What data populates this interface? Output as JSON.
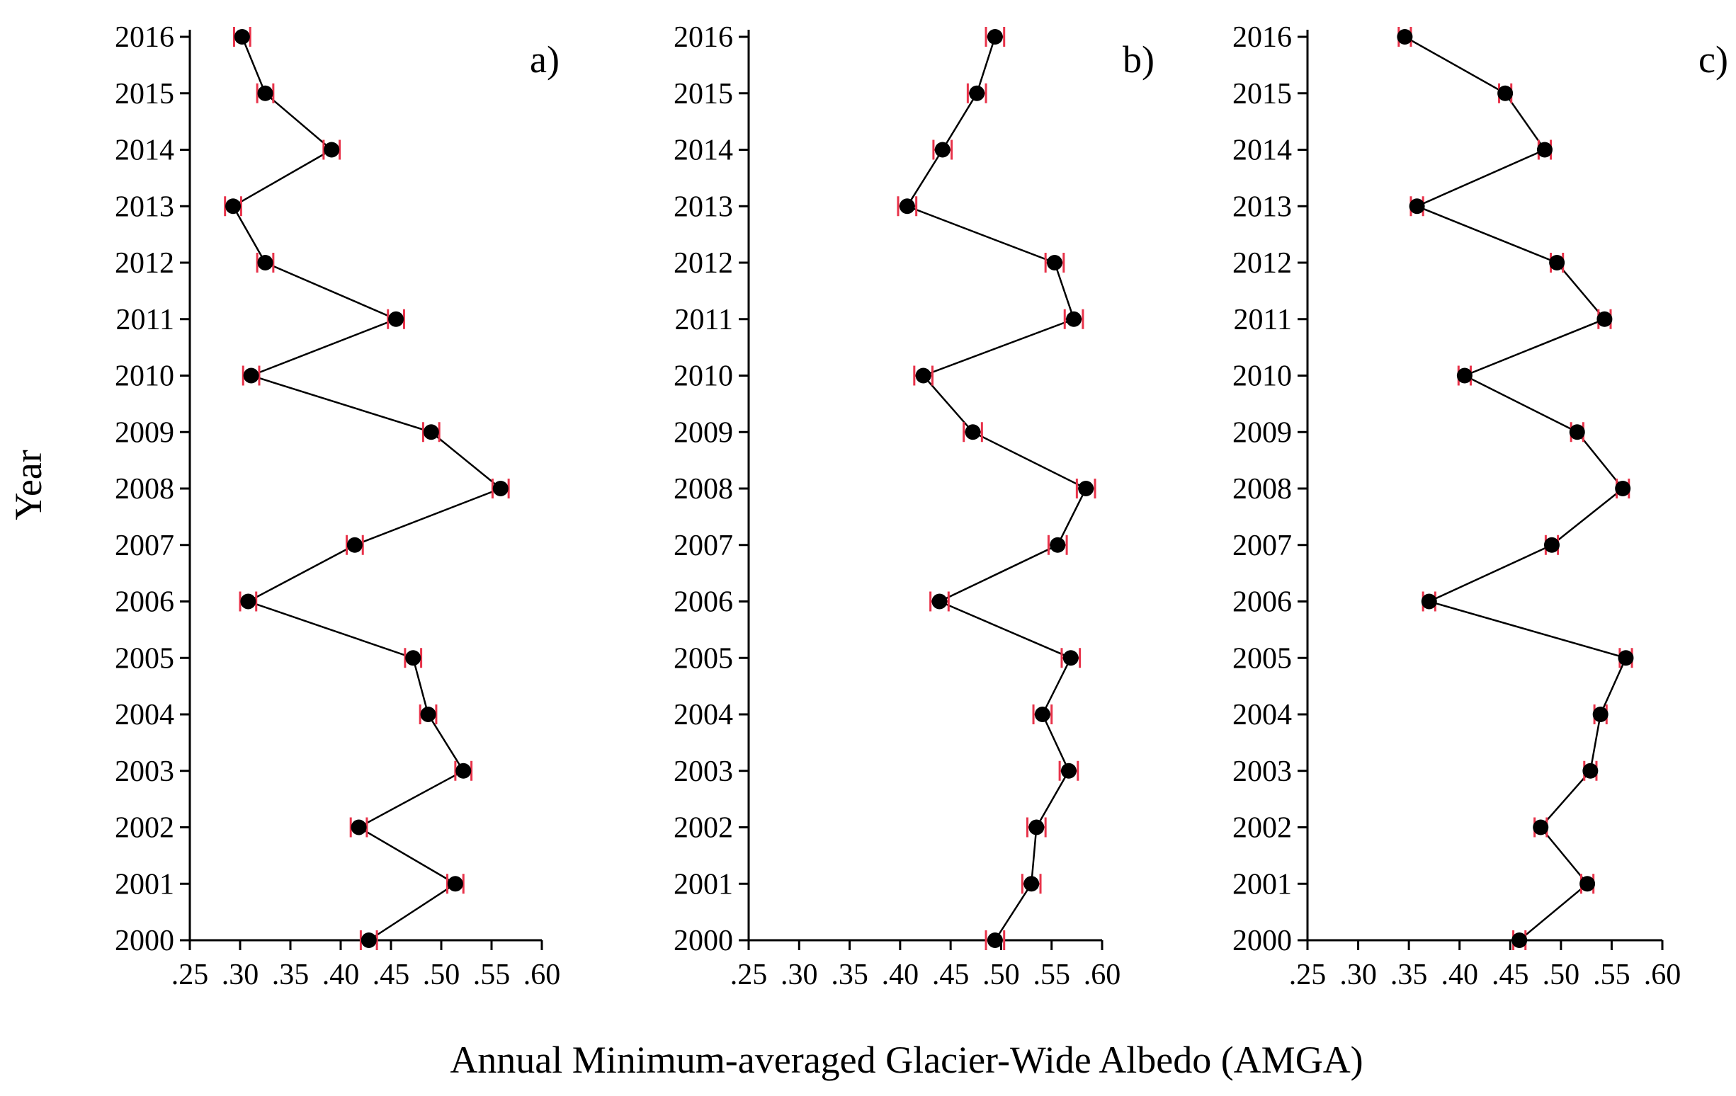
{
  "chart_data": {
    "type": "line",
    "orientation": "horizontal-x-value-vertical-category",
    "ylabel": "Year",
    "xlabel": "Annual Minimum-averaged Glacier-Wide Albedo (AMGA)",
    "years": [
      "2000",
      "2001",
      "2002",
      "2003",
      "2004",
      "2005",
      "2006",
      "2007",
      "2008",
      "2009",
      "2010",
      "2011",
      "2012",
      "2013",
      "2014",
      "2015",
      "2016"
    ],
    "xlim": [
      0.25,
      0.6
    ],
    "xticks": [
      0.25,
      0.3,
      0.35,
      0.4,
      0.45,
      0.5,
      0.55,
      0.6
    ],
    "xtick_labels": [
      ".25",
      ".30",
      ".35",
      ".40",
      ".45",
      ".50",
      ".55",
      ".60"
    ],
    "error_bar_color": "#e8334a",
    "marker_color": "#000000",
    "panels": [
      {
        "label": "a)",
        "values": [
          0.428,
          0.514,
          0.418,
          0.522,
          0.487,
          0.472,
          0.308,
          0.414,
          0.559,
          0.49,
          0.311,
          0.455,
          0.325,
          0.293,
          0.391,
          0.325,
          0.302
        ],
        "error": 0.008
      },
      {
        "label": "b)",
        "values": [
          0.494,
          0.53,
          0.535,
          0.567,
          0.541,
          0.569,
          0.439,
          0.556,
          0.584,
          0.472,
          0.423,
          0.572,
          0.553,
          0.407,
          0.442,
          0.476,
          0.494
        ],
        "error": 0.009
      },
      {
        "label": "c)",
        "values": [
          0.459,
          0.526,
          0.48,
          0.529,
          0.539,
          0.564,
          0.37,
          0.491,
          0.561,
          0.516,
          0.405,
          0.543,
          0.496,
          0.358,
          0.484,
          0.445,
          0.346
        ],
        "error": 0.006
      }
    ]
  }
}
